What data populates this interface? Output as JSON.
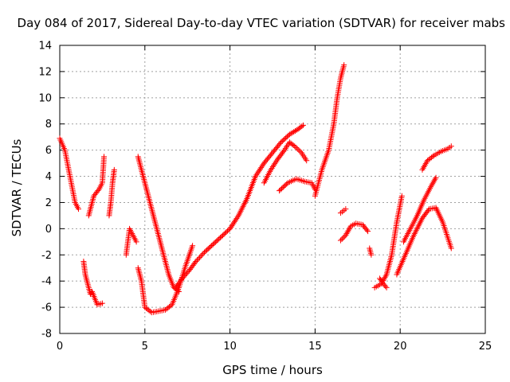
{
  "chart_data": {
    "type": "scatter",
    "title": "Day 084 of 2017, Sidereal Day-to-day VTEC variation (SDTVAR) for receiver mabs",
    "xlabel": "GPS time / hours",
    "ylabel": "SDTVAR / TECUs",
    "xlim": [
      0,
      25
    ],
    "ylim": [
      -8,
      14
    ],
    "xticks": [
      "0",
      "5",
      "10",
      "15",
      "20",
      "25"
    ],
    "yticks": [
      "-8",
      "-6",
      "-4",
      "-2",
      "0",
      "2",
      "4",
      "6",
      "8",
      "10",
      "12",
      "14"
    ],
    "grid": true,
    "marker": "+",
    "colors": {
      "points": "#ff0000",
      "grid": "#a0a0a0",
      "axes": "#000000"
    },
    "segments": [
      {
        "x": [
          0.0,
          0.3,
          0.6,
          0.9,
          1.1
        ],
        "y": [
          6.9,
          6.0,
          4.0,
          2.0,
          1.5
        ]
      },
      {
        "x": [
          1.4,
          1.5,
          1.6,
          1.7,
          1.8,
          1.9,
          2.2,
          2.5
        ],
        "y": [
          -2.5,
          -3.5,
          -4.0,
          -4.5,
          -5.0,
          -4.8,
          -5.8,
          -5.7
        ]
      },
      {
        "x": [
          1.7,
          2.0,
          2.3,
          2.5,
          2.6
        ],
        "y": [
          1.0,
          2.5,
          3.0,
          3.5,
          5.5
        ]
      },
      {
        "x": [
          2.9,
          3.0,
          3.1,
          3.2
        ],
        "y": [
          1.0,
          2.0,
          3.5,
          4.5
        ]
      },
      {
        "x": [
          3.9,
          4.1,
          4.3,
          4.5
        ],
        "y": [
          -2.0,
          0.0,
          -0.5,
          -1.0
        ]
      },
      {
        "x": [
          4.6,
          4.8,
          5.0,
          5.4,
          5.8,
          6.2,
          6.6,
          7.0,
          7.4,
          7.8
        ],
        "y": [
          -3.0,
          -4.0,
          -6.0,
          -6.4,
          -6.3,
          -6.2,
          -5.8,
          -4.5,
          -2.8,
          -1.3
        ]
      },
      {
        "x": [
          4.6,
          4.9,
          5.2,
          5.5,
          5.8,
          6.1,
          6.4,
          6.7,
          7.0
        ],
        "y": [
          5.5,
          4.0,
          2.5,
          1.0,
          -0.5,
          -2.0,
          -3.5,
          -4.5,
          -4.8
        ]
      },
      {
        "x": [
          6.8,
          7.2,
          7.6,
          8.0,
          8.5,
          9.0,
          9.5,
          10.0,
          10.5,
          11.0,
          11.5,
          12.0,
          12.5,
          13.0,
          13.5,
          14.0,
          14.3
        ],
        "y": [
          -4.5,
          -3.8,
          -3.2,
          -2.5,
          -1.8,
          -1.2,
          -0.6,
          0.0,
          1.0,
          2.3,
          4.0,
          5.0,
          5.8,
          6.6,
          7.2,
          7.6,
          7.9
        ]
      },
      {
        "x": [
          12.0,
          12.4,
          12.8,
          13.2,
          13.5,
          13.8,
          14.2,
          14.5
        ],
        "y": [
          3.5,
          4.5,
          5.3,
          6.0,
          6.6,
          6.3,
          5.8,
          5.2
        ]
      },
      {
        "x": [
          12.9,
          13.4,
          13.9,
          14.4,
          14.8,
          15.0
        ],
        "y": [
          2.9,
          3.5,
          3.8,
          3.6,
          3.5,
          3.0
        ]
      },
      {
        "x": [
          15.0,
          15.4,
          15.8,
          16.1,
          16.3,
          16.5,
          16.7
        ],
        "y": [
          2.5,
          4.5,
          6.0,
          8.0,
          10.0,
          11.5,
          12.5
        ]
      },
      {
        "x": [
          16.5,
          16.6,
          16.8
        ],
        "y": [
          1.2,
          1.3,
          1.5
        ]
      },
      {
        "x": [
          16.5,
          16.8,
          17.1,
          17.4,
          17.8,
          18.1
        ],
        "y": [
          -0.9,
          -0.5,
          0.2,
          0.4,
          0.3,
          -0.2
        ]
      },
      {
        "x": [
          18.2,
          18.3
        ],
        "y": [
          -1.5,
          -2.0
        ]
      },
      {
        "x": [
          18.5,
          18.9,
          19.2,
          19.5,
          19.8,
          20.1
        ],
        "y": [
          -4.5,
          -4.2,
          -3.5,
          -2.0,
          0.5,
          2.5
        ]
      },
      {
        "x": [
          18.8,
          19.0,
          19.2
        ],
        "y": [
          -3.8,
          -4.2,
          -4.5
        ]
      },
      {
        "x": [
          19.8,
          20.3,
          20.8,
          21.3,
          21.7,
          22.1,
          22.5,
          22.8,
          23.0
        ],
        "y": [
          -3.5,
          -2.0,
          -0.5,
          0.8,
          1.5,
          1.6,
          0.5,
          -0.7,
          -1.5
        ]
      },
      {
        "x": [
          20.2,
          20.6,
          21.0,
          21.4,
          21.8,
          22.1
        ],
        "y": [
          -1.0,
          0.0,
          1.0,
          2.2,
          3.2,
          3.9
        ]
      },
      {
        "x": [
          21.3,
          21.6,
          22.0,
          22.4,
          22.8,
          23.0
        ],
        "y": [
          4.5,
          5.2,
          5.6,
          5.9,
          6.1,
          6.3
        ]
      }
    ]
  }
}
